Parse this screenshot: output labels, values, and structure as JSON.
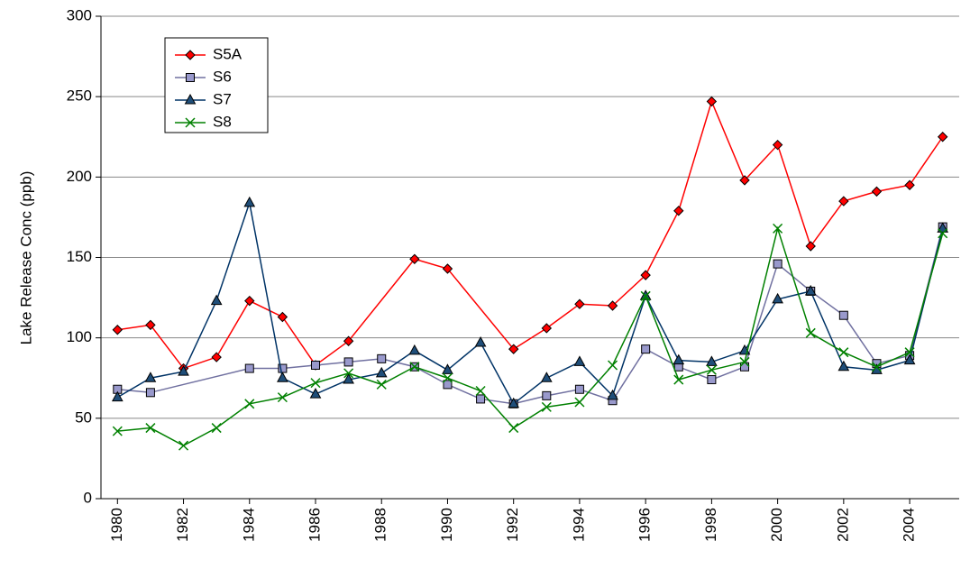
{
  "chart_data": {
    "type": "line",
    "y_label": "Lake Release Conc (ppb)",
    "xlim": [
      1979.5,
      2005.5
    ],
    "xticks": [
      1980,
      1982,
      1984,
      1986,
      1988,
      1990,
      1992,
      1994,
      1996,
      1998,
      2000,
      2002,
      2004
    ],
    "ylim": [
      0,
      300
    ],
    "yticks": [
      0,
      50,
      100,
      150,
      200,
      250,
      300
    ],
    "grid": true,
    "legend": "upper left",
    "series": [
      {
        "name": "S5A",
        "color": "#ff0000",
        "marker": "diamond",
        "marker_fill": "#ff0000",
        "x": [
          1980,
          1981,
          1982,
          1983,
          1984,
          1985,
          1986,
          1987,
          1989,
          1990,
          1992,
          1993,
          1994,
          1995,
          1996,
          1997,
          1998,
          1999,
          2000,
          2001,
          2002,
          2003,
          2004,
          2005
        ],
        "values": [
          105,
          108,
          81,
          88,
          123,
          113,
          83,
          98,
          149,
          143,
          93,
          106,
          121,
          120,
          139,
          179,
          247,
          198,
          220,
          157,
          185,
          191,
          195,
          225
        ]
      },
      {
        "name": "S6",
        "color": "#7070a0",
        "marker": "square",
        "marker_fill": "#9999cc",
        "x": [
          1980,
          1981,
          1984,
          1985,
          1986,
          1987,
          1988,
          1989,
          1990,
          1991,
          1992,
          1993,
          1994,
          1995,
          1996,
          1997,
          1998,
          1999,
          2000,
          2001,
          2002,
          2003,
          2004,
          2005
        ],
        "values": [
          68,
          66,
          81,
          81,
          83,
          85,
          87,
          82,
          71,
          62,
          59,
          64,
          68,
          61,
          93,
          82,
          74,
          82,
          146,
          129,
          114,
          84,
          89,
          169
        ]
      },
      {
        "name": "S7",
        "color": "#003366",
        "marker": "triangle",
        "marker_fill": "#1f4e79",
        "x": [
          1980,
          1981,
          1982,
          1983,
          1984,
          1985,
          1986,
          1987,
          1988,
          1989,
          1990,
          1991,
          1992,
          1993,
          1994,
          1995,
          1996,
          1997,
          1998,
          1999,
          2000,
          2001,
          2002,
          2003,
          2004,
          2005
        ],
        "values": [
          63,
          75,
          79,
          123,
          184,
          75,
          65,
          74,
          78,
          92,
          80,
          97,
          59,
          75,
          85,
          64,
          126,
          86,
          85,
          92,
          124,
          129,
          82,
          80,
          86,
          168
        ]
      },
      {
        "name": "S8",
        "color": "#008000",
        "marker": "x",
        "marker_fill": "#008000",
        "x": [
          1980,
          1981,
          1982,
          1983,
          1984,
          1985,
          1986,
          1987,
          1988,
          1989,
          1990,
          1991,
          1992,
          1993,
          1994,
          1995,
          1996,
          1997,
          1998,
          1999,
          2000,
          2001,
          2002,
          2003,
          2004,
          2005
        ],
        "values": [
          42,
          44,
          33,
          44,
          59,
          63,
          72,
          78,
          71,
          82,
          75,
          67,
          44,
          57,
          60,
          83,
          126,
          74,
          80,
          85,
          168,
          103,
          91,
          82,
          91,
          165
        ]
      }
    ]
  }
}
